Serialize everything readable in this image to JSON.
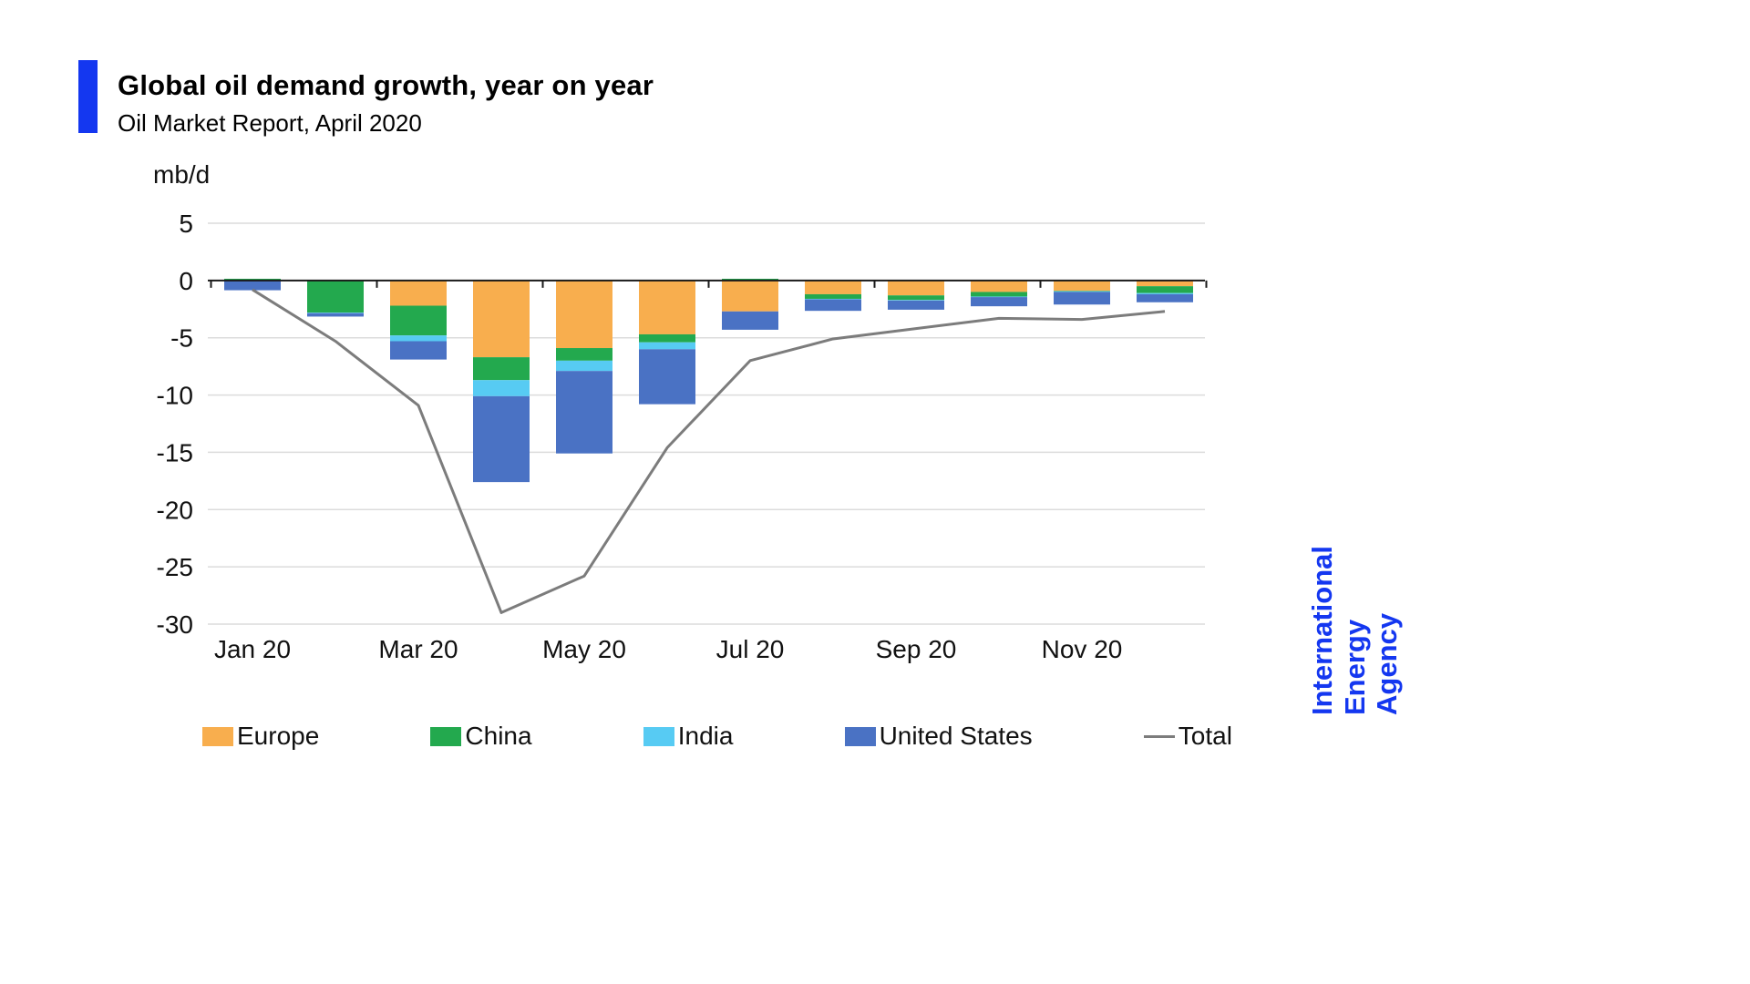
{
  "branding": {
    "logo_text": "International\nEnergy Agency",
    "brand_blue": "#1437f0"
  },
  "chart_data": {
    "type": "stacked-bar-with-line",
    "title": "Global oil demand growth, year on year",
    "subtitle": "Oil Market Report, April 2020",
    "ylabel": "mb/d",
    "ylim": [
      -30,
      5
    ],
    "yticks": [
      5,
      0,
      -5,
      -10,
      -15,
      -20,
      -25,
      -30
    ],
    "grid": "horizontal",
    "legend_position": "bottom",
    "x_categories": [
      "Jan 20",
      "Feb 20",
      "Mar 20",
      "Apr 20",
      "May 20",
      "Jun 20",
      "Jul 20",
      "Aug 20",
      "Sep 20",
      "Oct 20",
      "Nov 20",
      "Dec 20"
    ],
    "x_axis_labels": [
      "Jan 20",
      "Mar 20",
      "May 20",
      "Jul 20",
      "Sep 20",
      "Nov 20"
    ],
    "x_label_every": 2,
    "series": [
      {
        "name": "Europe",
        "color": "#F8AE4E",
        "values": [
          0,
          0,
          -2.2,
          -6.7,
          -5.9,
          -4.7,
          -2.7,
          -1.2,
          -1.3,
          -1.0,
          -0.9,
          -0.5
        ]
      },
      {
        "name": "China",
        "color": "#23A94E",
        "values": [
          0.15,
          -2.8,
          -2.6,
          -2.0,
          -1.1,
          -0.7,
          0.15,
          -0.4,
          -0.4,
          -0.4,
          -0.05,
          -0.6
        ]
      },
      {
        "name": "India",
        "color": "#57CBF3",
        "values": [
          0,
          -0.05,
          -0.5,
          -1.4,
          -0.9,
          -0.6,
          0,
          -0.05,
          -0.05,
          -0.05,
          -0.05,
          -0.1
        ]
      },
      {
        "name": "United States",
        "color": "#4A72C4",
        "values": [
          -0.85,
          -0.3,
          -1.6,
          -7.5,
          -7.2,
          -4.8,
          -1.6,
          -1.0,
          -0.8,
          -0.8,
          -1.1,
          -0.7
        ]
      }
    ],
    "total_line": {
      "name": "Total",
      "color": "#7C7C7C",
      "values": [
        -0.8,
        -5.3,
        -10.9,
        -29.0,
        -25.8,
        -14.6,
        -7.0,
        -5.1,
        -4.2,
        -3.3,
        -3.4,
        -2.7
      ]
    },
    "colors": {
      "gridline": "#DCDCDC",
      "zero_axis": "#1A1A1A",
      "tick_label": "#111111"
    }
  }
}
